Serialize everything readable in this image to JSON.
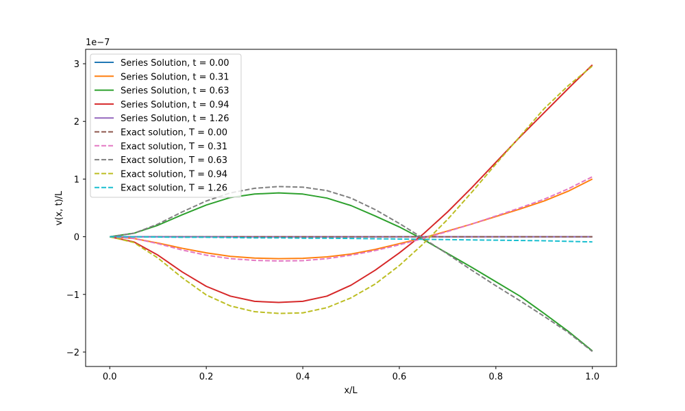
{
  "chart_data": {
    "type": "line",
    "title": "",
    "xlabel": "x/L",
    "ylabel": "v(x, t)/L",
    "offset_label": "1e−7",
    "scale": 1e-07,
    "xlim": [
      -0.05,
      1.05
    ],
    "ylim": [
      -2.25,
      3.25
    ],
    "xticks": [
      0.0,
      0.2,
      0.4,
      0.6,
      0.8,
      1.0
    ],
    "xtick_labels": [
      "0.0",
      "0.2",
      "0.4",
      "0.6",
      "0.8",
      "1.0"
    ],
    "yticks": [
      -2,
      -1,
      0,
      1,
      2,
      3
    ],
    "ytick_labels": [
      "−2",
      "−1",
      "0",
      "1",
      "2",
      "3"
    ],
    "grid": false,
    "legend_position": "upper-left",
    "x": [
      0.0,
      0.05,
      0.1,
      0.15,
      0.2,
      0.25,
      0.3,
      0.35,
      0.4,
      0.45,
      0.5,
      0.55,
      0.6,
      0.65,
      0.7,
      0.75,
      0.8,
      0.85,
      0.9,
      0.95,
      1.0
    ],
    "series": [
      {
        "name": "Series Solution, t = 0.00",
        "color": "#1f77b4",
        "dash": "solid",
        "values": [
          0,
          0,
          0,
          0,
          0,
          0,
          0,
          0,
          0,
          0,
          0,
          0,
          0,
          0,
          0,
          0,
          0,
          0,
          0,
          0,
          0
        ]
      },
      {
        "name": "Series Solution, t = 0.31",
        "color": "#ff7f0e",
        "dash": "solid",
        "values": [
          0,
          -0.03,
          -0.11,
          -0.2,
          -0.28,
          -0.34,
          -0.37,
          -0.38,
          -0.375,
          -0.35,
          -0.3,
          -0.22,
          -0.12,
          -0.02,
          0.1,
          0.22,
          0.35,
          0.48,
          0.62,
          0.79,
          1.0
        ]
      },
      {
        "name": "Series Solution, t = 0.63",
        "color": "#2ca02c",
        "dash": "solid",
        "values": [
          0,
          0.06,
          0.2,
          0.38,
          0.55,
          0.68,
          0.74,
          0.76,
          0.74,
          0.67,
          0.54,
          0.36,
          0.17,
          -0.05,
          -0.29,
          -0.53,
          -0.78,
          -1.03,
          -1.33,
          -1.64,
          -1.98
        ]
      },
      {
        "name": "Series Solution, t = 0.94",
        "color": "#d62728",
        "dash": "solid",
        "values": [
          0,
          -0.09,
          -0.32,
          -0.61,
          -0.86,
          -1.03,
          -1.12,
          -1.14,
          -1.12,
          -1.03,
          -0.84,
          -0.58,
          -0.28,
          0.05,
          0.43,
          0.85,
          1.29,
          1.73,
          2.15,
          2.57,
          2.98
        ]
      },
      {
        "name": "Series Solution, t = 1.26",
        "color": "#9467bd",
        "dash": "solid",
        "values": [
          0,
          0,
          0,
          0,
          0,
          0,
          0,
          0,
          0,
          0,
          0,
          0,
          0,
          0,
          0,
          0,
          0,
          0,
          0,
          0,
          0
        ]
      },
      {
        "name": "Exact solution, T = 0.00",
        "color": "#8c564b",
        "dash": "dashed",
        "values": [
          0,
          0,
          0,
          0,
          0,
          0,
          0,
          0,
          0,
          0,
          0,
          0,
          0,
          0,
          0,
          0,
          0,
          0,
          0,
          0,
          0
        ]
      },
      {
        "name": "Exact solution, T = 0.31",
        "color": "#e377c2",
        "dash": "dashed",
        "values": [
          0,
          -0.03,
          -0.12,
          -0.23,
          -0.32,
          -0.38,
          -0.41,
          -0.42,
          -0.415,
          -0.38,
          -0.32,
          -0.24,
          -0.14,
          -0.03,
          0.09,
          0.22,
          0.36,
          0.5,
          0.65,
          0.83,
          1.04
        ]
      },
      {
        "name": "Exact solution, T = 0.63",
        "color": "#7f7f7f",
        "dash": "dashed",
        "values": [
          0,
          0.06,
          0.22,
          0.43,
          0.62,
          0.76,
          0.84,
          0.87,
          0.86,
          0.8,
          0.67,
          0.47,
          0.23,
          -0.03,
          -0.3,
          -0.58,
          -0.85,
          -1.11,
          -1.38,
          -1.66,
          -1.99
        ]
      },
      {
        "name": "Exact solution, T = 0.94",
        "color": "#bcbd22",
        "dash": "dashed",
        "values": [
          0,
          -0.1,
          -0.37,
          -0.71,
          -1.01,
          -1.2,
          -1.3,
          -1.33,
          -1.32,
          -1.23,
          -1.06,
          -0.82,
          -0.5,
          -0.12,
          0.3,
          0.77,
          1.26,
          1.74,
          2.22,
          2.62,
          2.96
        ]
      },
      {
        "name": "Exact solution, T = 1.26",
        "color": "#17becf",
        "dash": "dashed",
        "values": [
          0,
          0,
          -0.005,
          -0.01,
          -0.01,
          -0.015,
          -0.02,
          -0.02,
          -0.025,
          -0.025,
          -0.03,
          -0.035,
          -0.04,
          -0.045,
          -0.05,
          -0.055,
          -0.06,
          -0.065,
          -0.07,
          -0.08,
          -0.09
        ]
      }
    ]
  }
}
